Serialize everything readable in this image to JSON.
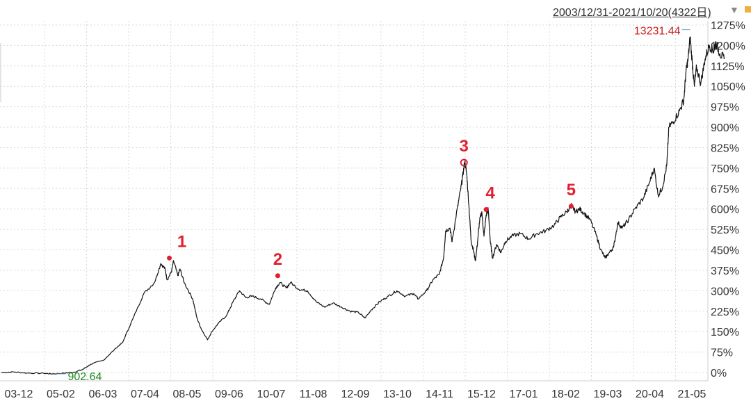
{
  "header": {
    "date_range": "2003/12/31-2021/10/20(4322日)"
  },
  "chart_data": {
    "type": "line",
    "x_tick_labels": [
      "03-12",
      "05-02",
      "06-03",
      "07-04",
      "08-05",
      "09-06",
      "10-07",
      "11-08",
      "12-09",
      "13-10",
      "14-11",
      "15-12",
      "17-01",
      "18-02",
      "19-03",
      "20-04",
      "21-05"
    ],
    "y_tick_labels": [
      "1275%",
      "1200%",
      "1125%",
      "1050%",
      "975%",
      "900%",
      "825%",
      "750%",
      "675%",
      "600%",
      "525%",
      "450%",
      "375%",
      "300%",
      "225%",
      "150%",
      "75%",
      "0%"
    ],
    "y_ticks": [
      1275,
      1200,
      1125,
      1050,
      975,
      900,
      825,
      750,
      675,
      600,
      525,
      450,
      375,
      300,
      225,
      150,
      75,
      0
    ],
    "ylim": [
      -8,
      1298
    ],
    "xlim": [
      0,
      17.5
    ],
    "max_label": "13231.44",
    "min_label": "902.64",
    "grid": true,
    "series": [
      {
        "color": "#111111",
        "points": [
          [
            0,
            0
          ],
          [
            0.3,
            2
          ],
          [
            0.6,
            -2
          ],
          [
            1.0,
            -3
          ],
          [
            1.2,
            -5
          ],
          [
            1.5,
            -2
          ],
          [
            1.7,
            1
          ],
          [
            1.9,
            10
          ],
          [
            2.1,
            30
          ],
          [
            2.4,
            45
          ],
          [
            2.7,
            90
          ],
          [
            2.85,
            110
          ],
          [
            3.1,
            200
          ],
          [
            3.35,
            290
          ],
          [
            3.6,
            330
          ],
          [
            3.75,
            400
          ],
          [
            3.85,
            380
          ],
          [
            3.9,
            340
          ],
          [
            4.0,
            370
          ],
          [
            4.05,
            410
          ],
          [
            4.15,
            355
          ],
          [
            4.2,
            380
          ],
          [
            4.3,
            330
          ],
          [
            4.5,
            270
          ],
          [
            4.6,
            200
          ],
          [
            4.7,
            160
          ],
          [
            4.85,
            120
          ],
          [
            4.95,
            150
          ],
          [
            5.1,
            180
          ],
          [
            5.3,
            210
          ],
          [
            5.45,
            260
          ],
          [
            5.6,
            300
          ],
          [
            5.75,
            275
          ],
          [
            5.9,
            280
          ],
          [
            6.1,
            270
          ],
          [
            6.3,
            250
          ],
          [
            6.45,
            310
          ],
          [
            6.55,
            330
          ],
          [
            6.7,
            310
          ],
          [
            6.8,
            330
          ],
          [
            7.0,
            305
          ],
          [
            7.2,
            300
          ],
          [
            7.4,
            260
          ],
          [
            7.6,
            240
          ],
          [
            7.8,
            255
          ],
          [
            8.0,
            240
          ],
          [
            8.2,
            225
          ],
          [
            8.4,
            220
          ],
          [
            8.55,
            200
          ],
          [
            8.7,
            230
          ],
          [
            8.9,
            260
          ],
          [
            9.1,
            280
          ],
          [
            9.3,
            300
          ],
          [
            9.5,
            280
          ],
          [
            9.7,
            290
          ],
          [
            9.8,
            270
          ],
          [
            10.0,
            300
          ],
          [
            10.15,
            340
          ],
          [
            10.3,
            360
          ],
          [
            10.4,
            420
          ],
          [
            10.45,
            520
          ],
          [
            10.55,
            530
          ],
          [
            10.6,
            480
          ],
          [
            10.7,
            580
          ],
          [
            10.8,
            670
          ],
          [
            10.85,
            720
          ],
          [
            10.9,
            775
          ],
          [
            10.95,
            720
          ],
          [
            11.0,
            600
          ],
          [
            11.05,
            480
          ],
          [
            11.1,
            450
          ],
          [
            11.15,
            410
          ],
          [
            11.2,
            480
          ],
          [
            11.25,
            560
          ],
          [
            11.3,
            590
          ],
          [
            11.35,
            500
          ],
          [
            11.4,
            575
          ],
          [
            11.45,
            600
          ],
          [
            11.5,
            480
          ],
          [
            11.55,
            420
          ],
          [
            11.65,
            470
          ],
          [
            11.75,
            440
          ],
          [
            11.85,
            480
          ],
          [
            12.0,
            500
          ],
          [
            12.2,
            510
          ],
          [
            12.4,
            490
          ],
          [
            12.6,
            510
          ],
          [
            12.8,
            520
          ],
          [
            13.0,
            540
          ],
          [
            13.15,
            570
          ],
          [
            13.3,
            590
          ],
          [
            13.4,
            615
          ],
          [
            13.5,
            590
          ],
          [
            13.6,
            600
          ],
          [
            13.7,
            585
          ],
          [
            13.85,
            560
          ],
          [
            14.0,
            500
          ],
          [
            14.1,
            450
          ],
          [
            14.2,
            420
          ],
          [
            14.3,
            440
          ],
          [
            14.4,
            460
          ],
          [
            14.5,
            550
          ],
          [
            14.6,
            530
          ],
          [
            14.75,
            560
          ],
          [
            14.9,
            600
          ],
          [
            15.1,
            640
          ],
          [
            15.25,
            700
          ],
          [
            15.35,
            750
          ],
          [
            15.45,
            650
          ],
          [
            15.55,
            680
          ],
          [
            15.65,
            760
          ],
          [
            15.7,
            900
          ],
          [
            15.8,
            920
          ],
          [
            15.95,
            960
          ],
          [
            16.05,
            1000
          ],
          [
            16.1,
            1100
          ],
          [
            16.15,
            1150
          ],
          [
            16.2,
            1230
          ],
          [
            16.25,
            1135
          ],
          [
            16.3,
            1050
          ],
          [
            16.35,
            1120
          ],
          [
            16.45,
            1060
          ],
          [
            16.55,
            1150
          ],
          [
            16.65,
            1200
          ],
          [
            16.75,
            1180
          ],
          [
            16.8,
            1210
          ],
          [
            16.9,
            1170
          ],
          [
            17.0,
            1150
          ]
        ]
      }
    ],
    "annotations": [
      {
        "label": "1",
        "x": 3.95,
        "y": 420
      },
      {
        "label": "2",
        "x": 6.5,
        "y": 355
      },
      {
        "label": "3",
        "x": 10.88,
        "y": 770,
        "ring": true
      },
      {
        "label": "4",
        "x": 11.4,
        "y": 598
      },
      {
        "label": "5",
        "x": 13.4,
        "y": 610
      }
    ],
    "max_point": {
      "x": 16.2,
      "y": 1230
    },
    "min_point": {
      "x": 1.3,
      "y": -5
    },
    "colors": {
      "line": "#111111",
      "marker": "#e02030",
      "max_text": "#c81e1e",
      "min_text": "#1a8a1a",
      "grid": "#d8d8d8"
    }
  }
}
